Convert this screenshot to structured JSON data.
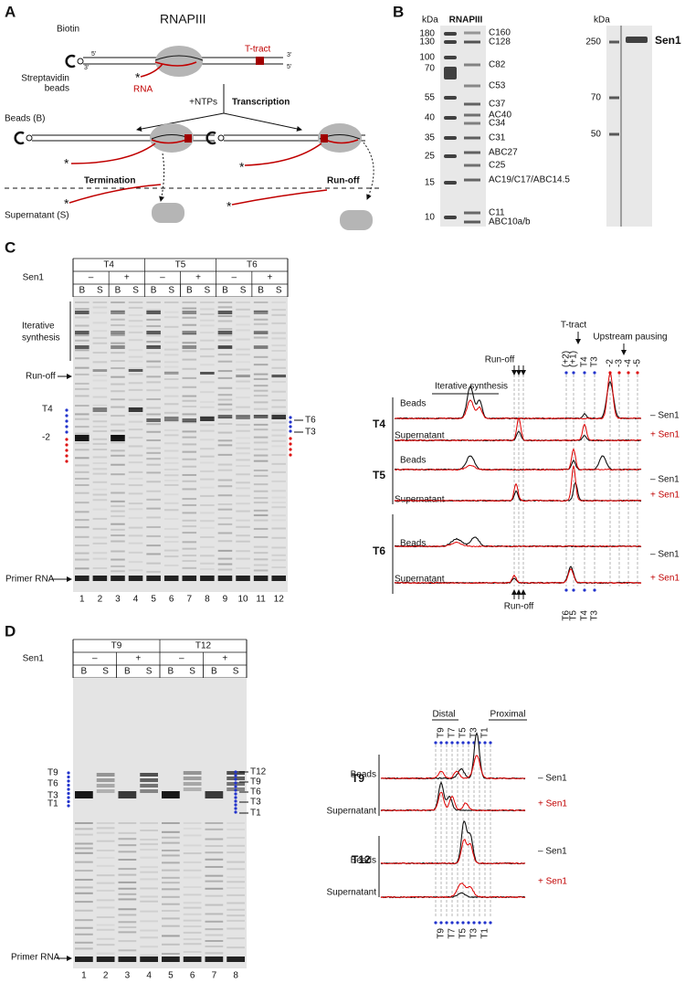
{
  "panel_a": {
    "label": "A",
    "biotin": "Biotin",
    "polymerase": "RNAPIII",
    "t_tract": "T-tract",
    "beads_label": [
      "Streptavidin",
      "beads"
    ],
    "ends": [
      "5'",
      "3'",
      "3'",
      "5'"
    ],
    "rna": "RNA",
    "asterisk": "*",
    "ntps": "+NTPs",
    "transcription": "Transcription",
    "beads": "Beads (B)",
    "termination": "Termination",
    "run_off": "Run-off",
    "supernatant": "Supernatant (S)"
  },
  "panel_b": {
    "label": "B",
    "kda": "kDa",
    "title": "RNAPIII",
    "markers": [
      180,
      130,
      100,
      70,
      55,
      40,
      35,
      25,
      15,
      10
    ],
    "subunits": [
      "C160",
      "C128",
      "C82",
      "C53",
      "C37",
      "AC40",
      "C34",
      "C31",
      "ABC27",
      "C25",
      "AC19/C17/ABC14.5",
      "C11",
      "ABC10a/b"
    ],
    "sen1_kda": "kDa",
    "sen1_markers": [
      250,
      70,
      50
    ],
    "sen1": "Sen1"
  },
  "panel_c": {
    "label": "C",
    "header": {
      "constructs": [
        "T4",
        "T5",
        "T6"
      ],
      "sen1": "Sen1",
      "states": [
        "–",
        "+"
      ],
      "fractions": [
        "B",
        "S"
      ]
    },
    "gel_labels": {
      "iterative": [
        "Iterative",
        "synthesis"
      ],
      "run_off": "Run-off",
      "t4": "T4",
      "minus2": "-2",
      "primer": "Primer RNA",
      "right": [
        "T6",
        "T3"
      ]
    },
    "lanes": [
      1,
      2,
      3,
      4,
      5,
      6,
      7,
      8,
      9,
      10,
      11,
      12
    ],
    "traces": {
      "iterative": "Iterative synthesis",
      "run_off": "Run-off",
      "t_tract": "T-tract",
      "upstream": "Upstream pausing",
      "tract_positions": [
        "(+2)",
        "(+1)",
        "T4",
        "T3"
      ],
      "pausing_positions": [
        "-2",
        "-3",
        "-4",
        "-5"
      ],
      "rows": [
        "T4",
        "T5",
        "T6"
      ],
      "beads": "Beads",
      "supernatant": "Supernatant",
      "minus_sen1": "– Sen1",
      "plus_sen1": "+ Sen1",
      "bottom_run_off": "Run-off",
      "bottom_positions": [
        "T6",
        "T5",
        "T4",
        "T3"
      ]
    }
  },
  "panel_d": {
    "label": "D",
    "header": {
      "constructs": [
        "T9",
        "T12"
      ],
      "sen1": "Sen1",
      "states": [
        "–",
        "+"
      ],
      "fractions": [
        "B",
        "S"
      ]
    },
    "gel_labels": {
      "left": [
        "T9",
        "T6",
        "T3",
        "T1"
      ],
      "primer": "Primer RNA",
      "right": [
        "T12",
        "T9",
        "T6",
        "T3",
        "T1"
      ]
    },
    "lanes": [
      1,
      2,
      3,
      4,
      5,
      6,
      7,
      8
    ],
    "traces": {
      "distal": "Distal",
      "proximal": "Proximal",
      "positions": [
        "T9",
        "T7",
        "T5",
        "T3",
        "T1"
      ],
      "rows": [
        "T9",
        "T12"
      ],
      "beads": "Beads",
      "supernatant": "Supernatant",
      "minus_sen1": "– Sen1",
      "plus_sen1": "+ Sen1",
      "bottom_positions": [
        "T9",
        "T7",
        "T5",
        "T3",
        "T1"
      ]
    }
  }
}
